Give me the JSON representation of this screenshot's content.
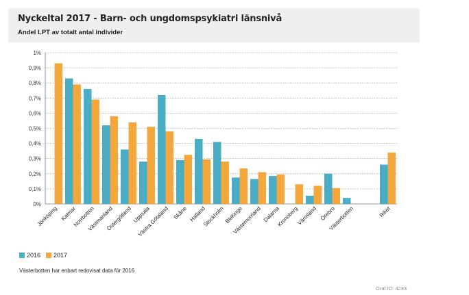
{
  "header": {
    "title": "Nyckeltal 2017 - Barn- och ungdomspsykiatri länsnivå",
    "subtitle": "Andel LPT av totalt antal individer"
  },
  "colors": {
    "series_2016": "#4bacc6",
    "series_2017": "#f4a73c",
    "grid": "#b5b5b5"
  },
  "chart_data": {
    "type": "bar",
    "title": "Nyckeltal 2017 - Barn- och ungdomspsykiatri länsnivå",
    "subtitle": "Andel LPT av totalt antal individer",
    "categories": [
      "Jönköping",
      "Kalmar",
      "Norrbotten",
      "Västmanland",
      "Östergötland",
      "Uppsala",
      "Västra Götaland",
      "Skåne",
      "Halland",
      "Stockholm",
      "Blekinge",
      "Västernorrland",
      "Dalarna",
      "Kronoberg",
      "Värmland",
      "Örebro",
      "Västerbotten",
      "",
      "Riket"
    ],
    "series": [
      {
        "name": "2016",
        "values": [
          null,
          0.83,
          0.76,
          0.52,
          0.36,
          0.28,
          0.72,
          0.29,
          0.43,
          0.41,
          0.175,
          0.165,
          0.185,
          null,
          0.055,
          0.2,
          0.04,
          null,
          0.26
        ]
      },
      {
        "name": "2017",
        "values": [
          0.93,
          0.79,
          0.69,
          0.58,
          0.54,
          0.51,
          0.48,
          0.325,
          0.295,
          0.28,
          0.235,
          0.21,
          0.195,
          0.13,
          0.12,
          0.105,
          null,
          null,
          0.34
        ]
      }
    ],
    "yticks": [
      "0%",
      "0,1%",
      "0,2%",
      "0,3%",
      "0,4%",
      "0,5%",
      "0,6%",
      "0,7%",
      "0,8%",
      "0,9%",
      "1%"
    ],
    "ylim": [
      0,
      1
    ],
    "xlabel": "",
    "ylabel": "",
    "grid": true,
    "legend_position": "bottom-left"
  },
  "legend": {
    "items": [
      "2016",
      "2017"
    ]
  },
  "footnote": "Västerbotten har enbart redovisat data för 2016",
  "graf_id": "Graf ID: 4233"
}
